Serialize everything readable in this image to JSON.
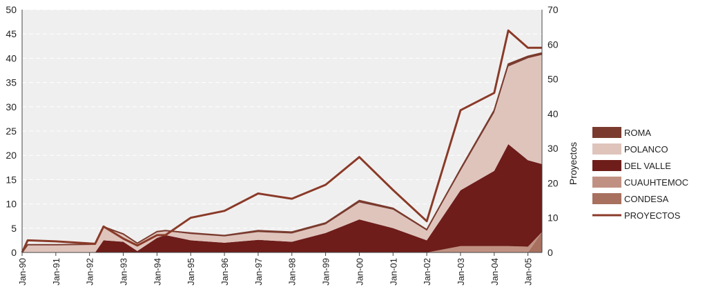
{
  "chart_data": {
    "type": "area",
    "title": "",
    "x_tick_labels": [
      "Jan-90",
      "Jan-91",
      "Jan-92",
      "Jan-93",
      "Jan-94",
      "Jan-95",
      "Jan-96",
      "Jan-97",
      "Jan-98",
      "Jan-99",
      "Jan-00",
      "Jan-01",
      "Jan-02",
      "Jan-03",
      "Jan-04",
      "Jan-05"
    ],
    "y_left": {
      "label": "",
      "range": [
        0,
        50
      ],
      "ticks": [
        0,
        5,
        10,
        15,
        20,
        25,
        30,
        35,
        40,
        45,
        50
      ]
    },
    "y_right": {
      "label": "Proyectos",
      "range": [
        0,
        70
      ],
      "ticks": [
        0,
        10,
        20,
        30,
        40,
        50,
        60,
        70
      ]
    },
    "grid": "horizontal dashed",
    "legend_position": "right",
    "stack_order": [
      "CONDESA",
      "CUAUHTEMOC",
      "DEL VALLE",
      "POLANCO",
      "ROMA"
    ],
    "series": [
      {
        "name": "ROMA",
        "kind": "area",
        "color": "#7a3b2e",
        "x": [
          "1990-01",
          "1990-03",
          "1991-01",
          "1992-03",
          "1992-06",
          "1993-01",
          "1993-06",
          "1994-01",
          "1994-04",
          "1995-01",
          "1996-01",
          "1997-01",
          "1998-01",
          "1999-01",
          "2000-01",
          "2001-01",
          "2002-01",
          "2003-01",
          "2004-01",
          "2004-06",
          "2005-01",
          "2005-06"
        ],
        "values": [
          0,
          0,
          0,
          0.1,
          0.2,
          0.1,
          0,
          0.1,
          0.1,
          0.2,
          0.2,
          0.3,
          0.3,
          0.3,
          0.4,
          0.3,
          0.2,
          0.4,
          0.5,
          0.5,
          0.4,
          0.4
        ]
      },
      {
        "name": "POLANCO",
        "kind": "area",
        "color": "#dfc4bc",
        "x": [
          "1990-01",
          "1990-03",
          "1991-01",
          "1992-03",
          "1992-06",
          "1993-01",
          "1993-06",
          "1994-01",
          "1994-04",
          "1995-01",
          "1996-01",
          "1997-01",
          "1998-01",
          "1999-01",
          "2000-01",
          "2001-01",
          "2002-01",
          "2003-01",
          "2004-01",
          "2004-06",
          "2005-01",
          "2005-06"
        ],
        "values": [
          0,
          1.6,
          1.6,
          1.6,
          2.6,
          1.5,
          1.6,
          1.2,
          0.8,
          1.3,
          1.3,
          1.6,
          1.7,
          1.8,
          3.5,
          3.8,
          2,
          4,
          12,
          16,
          21,
          22.5
        ]
      },
      {
        "name": "DEL VALLE",
        "kind": "area",
        "color": "#6e1d1a",
        "x": [
          "1990-01",
          "1990-03",
          "1991-01",
          "1992-03",
          "1992-06",
          "1993-01",
          "1993-06",
          "1994-01",
          "1994-04",
          "1995-01",
          "1996-01",
          "1997-01",
          "1998-01",
          "1999-01",
          "2000-01",
          "2001-01",
          "2002-01",
          "2003-01",
          "2004-01",
          "2004-06",
          "2005-01",
          "2005-06"
        ],
        "values": [
          0,
          0,
          0,
          0,
          2.5,
          2.2,
          0.3,
          3,
          3.6,
          2.5,
          2,
          2.6,
          2.2,
          4,
          6.8,
          5,
          2.5,
          11.5,
          15.5,
          21,
          17.8,
          14
        ]
      },
      {
        "name": "CUAUHTEMOC",
        "kind": "area",
        "color": "#c09182",
        "x": [
          "1990-01",
          "1990-03",
          "1991-01",
          "1992-03",
          "1992-06",
          "1993-01",
          "1993-06",
          "1994-01",
          "1994-04",
          "1995-01",
          "1996-01",
          "1997-01",
          "1998-01",
          "1999-01",
          "2000-01",
          "2001-01",
          "2002-01",
          "2003-01",
          "2004-01",
          "2004-06",
          "2005-01",
          "2005-06"
        ],
        "values": [
          0,
          0,
          0,
          0,
          0,
          0,
          0,
          0,
          0,
          0,
          0,
          0,
          0,
          0,
          0,
          0,
          0,
          1.3,
          1.3,
          1.3,
          1.2,
          0
        ]
      },
      {
        "name": "CONDESA",
        "kind": "area",
        "color": "#a8705f",
        "x": [
          "1990-01",
          "1990-03",
          "1991-01",
          "1992-03",
          "1992-06",
          "1993-01",
          "1993-06",
          "1994-01",
          "1994-04",
          "1995-01",
          "1996-01",
          "1997-01",
          "1998-01",
          "1999-01",
          "2000-01",
          "2001-01",
          "2002-01",
          "2003-01",
          "2004-01",
          "2004-06",
          "2005-01",
          "2005-06"
        ],
        "values": [
          0,
          0,
          0,
          0,
          0,
          0,
          0,
          0,
          0,
          0,
          0,
          0,
          0,
          0,
          0,
          0,
          0,
          0,
          0,
          0,
          0,
          4.2
        ]
      },
      {
        "name": "PROYECTOS",
        "kind": "line",
        "axis": "right",
        "color": "#8a3a28",
        "x": [
          "1990-01",
          "1990-03",
          "1991-01",
          "1992-03",
          "1992-06",
          "1993-01",
          "1993-06",
          "1994-01",
          "1994-04",
          "1995-01",
          "1996-01",
          "1997-01",
          "1998-01",
          "1999-01",
          "2000-01",
          "2001-01",
          "2002-01",
          "2003-01",
          "2004-01",
          "2004-06",
          "2005-01",
          "2005-06"
        ],
        "values": [
          0,
          3.5,
          3.2,
          2.5,
          7.5,
          4,
          2,
          5,
          5,
          10,
          12,
          17,
          15.5,
          19.5,
          27.5,
          18,
          9,
          41,
          46,
          64,
          59,
          59
        ]
      }
    ],
    "legend": [
      {
        "label": "ROMA",
        "kind": "area",
        "color": "#7a3b2e"
      },
      {
        "label": "POLANCO",
        "kind": "area",
        "color": "#dfc4bc"
      },
      {
        "label": "DEL VALLE",
        "kind": "area",
        "color": "#6e1d1a"
      },
      {
        "label": "CUAUHTEMOC",
        "kind": "area",
        "color": "#c09182"
      },
      {
        "label": "CONDESA",
        "kind": "area",
        "color": "#a8705f"
      },
      {
        "label": "PROYECTOS",
        "kind": "line",
        "color": "#8a3a28"
      }
    ]
  }
}
